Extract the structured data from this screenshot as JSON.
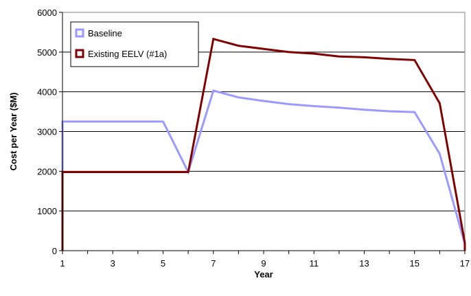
{
  "chart_data": {
    "type": "line",
    "title": "",
    "xlabel": "Year",
    "ylabel": "Cost per Year ($M)",
    "xlim": [
      1,
      17
    ],
    "ylim": [
      0,
      6000
    ],
    "x_ticks": [
      "1",
      "3",
      "5",
      "7",
      "9",
      "11",
      "13",
      "15",
      "17"
    ],
    "y_ticks": [
      "0",
      "1000",
      "2000",
      "3000",
      "4000",
      "5000",
      "6000"
    ],
    "grid": "horizontal",
    "legend_position": "top-left",
    "series": [
      {
        "name": "Baseline",
        "color": "#9999ff",
        "points": [
          [
            1,
            0
          ],
          [
            1,
            3250
          ],
          [
            2,
            3250
          ],
          [
            3,
            3250
          ],
          [
            4,
            3250
          ],
          [
            5,
            3250
          ],
          [
            6,
            1980
          ],
          [
            7,
            4030
          ],
          [
            8,
            3860
          ],
          [
            9,
            3770
          ],
          [
            10,
            3690
          ],
          [
            11,
            3640
          ],
          [
            12,
            3600
          ],
          [
            13,
            3550
          ],
          [
            14,
            3510
          ],
          [
            15,
            3490
          ],
          [
            16,
            2440
          ],
          [
            17,
            170
          ],
          [
            17,
            0
          ]
        ]
      },
      {
        "name": "Existing EELV (#1a)",
        "color": "#800000",
        "points": [
          [
            1,
            0
          ],
          [
            1,
            1980
          ],
          [
            2,
            1980
          ],
          [
            3,
            1980
          ],
          [
            4,
            1980
          ],
          [
            5,
            1980
          ],
          [
            6,
            1980
          ],
          [
            7,
            5330
          ],
          [
            8,
            5160
          ],
          [
            9,
            5080
          ],
          [
            10,
            5000
          ],
          [
            11,
            4960
          ],
          [
            12,
            4890
          ],
          [
            13,
            4870
          ],
          [
            14,
            4830
          ],
          [
            15,
            4800
          ],
          [
            16,
            3710
          ],
          [
            17,
            200
          ],
          [
            17,
            0
          ]
        ]
      }
    ]
  }
}
